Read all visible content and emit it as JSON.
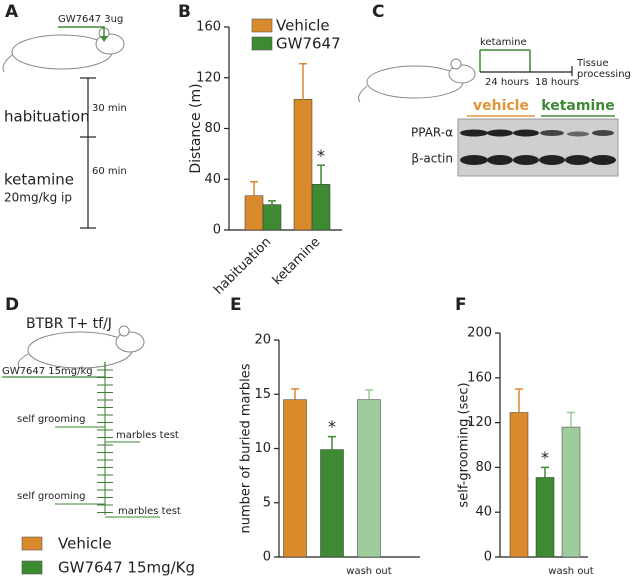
{
  "panel_labels": [
    "A",
    "B",
    "C",
    "D",
    "E",
    "F"
  ],
  "panel_a": {
    "drug": "GW7647 3ug",
    "phases": [
      {
        "label": "habituation",
        "duration": "30 min"
      },
      {
        "label": "ketamine",
        "dose": "20mg/kg ip",
        "duration": "60 min"
      }
    ]
  },
  "panel_c": {
    "injection": "ketamine",
    "intervals": [
      "24 hours",
      "18 hours"
    ],
    "end": [
      "Tissue",
      "processing"
    ],
    "groups": [
      {
        "label": "vehicle",
        "color": "#e0953a"
      },
      {
        "label": "ketamine",
        "color": "#3e8a33"
      }
    ],
    "bands": [
      "PPAR-α",
      "β-actin"
    ]
  },
  "panel_d": {
    "strain": "BTBR T+ tf/J",
    "drug": "GW7647 15mg/kg",
    "events": [
      "self grooming",
      "marbles test",
      "self grooming",
      "marbles test"
    ]
  },
  "legend": [
    {
      "name": "Vehicle",
      "color": "#d98a2b"
    },
    {
      "name": "GW7647 15mg/Kg",
      "color": "#3e8a33"
    }
  ],
  "chart_data": [
    {
      "type": "bar",
      "ylabel": "Distance (m)",
      "categories": [
        "habituation",
        "ketamine"
      ],
      "series": [
        {
          "name": "Vehicle",
          "color": "#d98a2b",
          "values": [
            27,
            103
          ],
          "errors": [
            11,
            28
          ],
          "annotations": [
            null,
            null
          ]
        },
        {
          "name": "GW7647",
          "color": "#3e8a33",
          "values": [
            20,
            36
          ],
          "errors": [
            3,
            15
          ],
          "annotations": [
            null,
            "*"
          ]
        }
      ],
      "ylim": [
        0,
        160
      ],
      "yticks": [
        0,
        40,
        80,
        120,
        160
      ]
    },
    {
      "type": "bar",
      "ylabel": "number of buried marbles",
      "categories": [
        null,
        null,
        "wash out"
      ],
      "values": [
        14.5,
        9.9,
        14.5
      ],
      "errors": [
        1.0,
        1.2,
        0.9
      ],
      "annotations": [
        null,
        "*",
        null
      ],
      "colors": [
        "#d98a2b",
        "#3e8a33",
        "#9fcc9c"
      ],
      "ylim": [
        0,
        20
      ],
      "yticks": [
        0,
        5,
        10,
        15,
        20
      ]
    },
    {
      "type": "bar",
      "ylabel": "self-grooming (sec)",
      "categories": [
        null,
        null,
        "wash out"
      ],
      "values": [
        129,
        71,
        116
      ],
      "errors": [
        21,
        9,
        13
      ],
      "annotations": [
        null,
        "*",
        null
      ],
      "colors": [
        "#d98a2b",
        "#3e8a33",
        "#9fcc9c"
      ],
      "ylim": [
        0,
        200
      ],
      "yticks": [
        0,
        40,
        80,
        120,
        160,
        200
      ]
    }
  ]
}
